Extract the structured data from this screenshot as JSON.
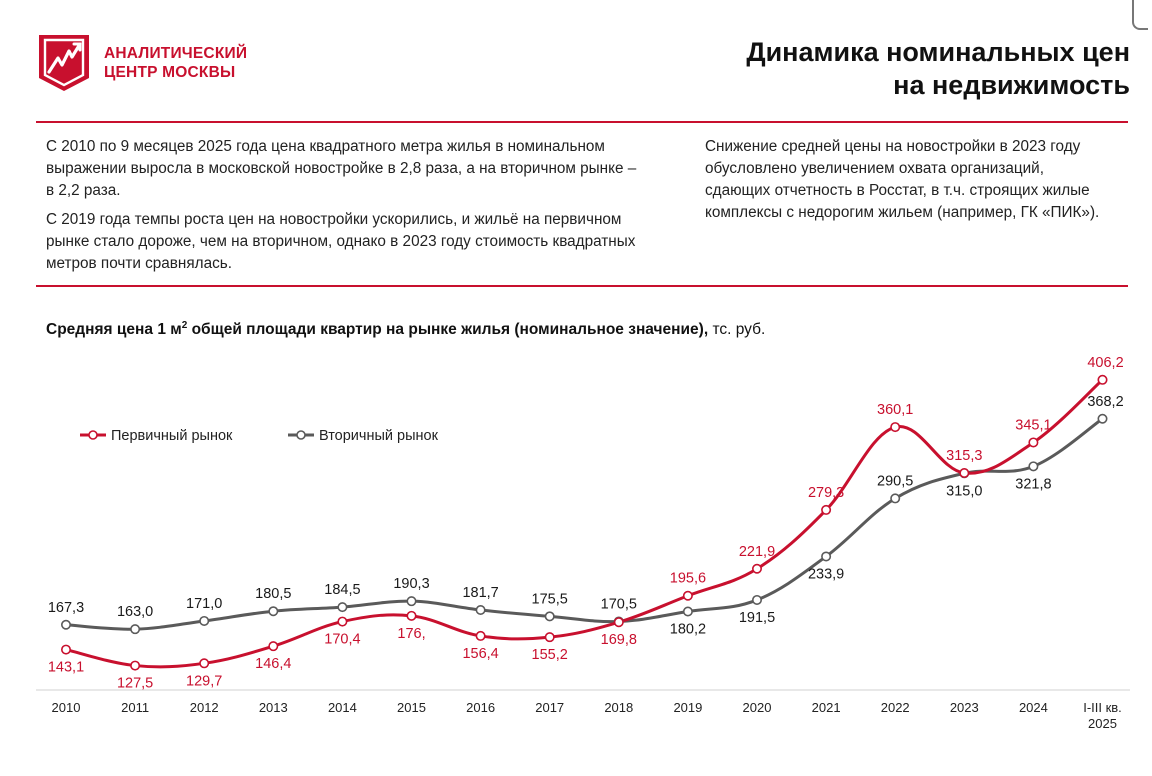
{
  "logo": {
    "line1": "АНАЛИТИЧЕСКИЙ",
    "line2": "ЦЕНТР МОСКВЫ"
  },
  "title": {
    "line1": "Динамика номинальных цен",
    "line2": "на недвижимость"
  },
  "text_left": {
    "p1": "С 2010 по 9 месяцев 2025 года цена квадратного метра жилья в номинальном выражении выросла в московской новостройке в 2,8 раза, а на вторичном рынке – в 2,2 раза.",
    "p2": "С 2019 года темпы роста цен на новостройки ускорились, и жильё на первичном рынке стало дороже, чем  на вторичном, однако в 2023 году стоимость квадратных метров почти сравнялась."
  },
  "text_right": "Снижение средней цены на новостройки в 2023 году обусловлено увеличением охвата организаций, сдающих отчетность в Росстат, в т.ч. строящих жилые комплексы с недорогим жильем (например, ГК «ПИК»).",
  "chart_heading": {
    "bold_pre": "Средняя цена 1 м",
    "sup": "2",
    "bold_post": " общей площади квартир на рынке жилья (номинальное значение),",
    "unit": " тс. руб."
  },
  "colors": {
    "accent": "#c8102e",
    "secondary": "#5a5a5a"
  },
  "chart_data": {
    "type": "line",
    "title": "Средняя цена 1 м² общей площади квартир на рынке жилья (номинальное значение), тыс. руб.",
    "categories": [
      "2010",
      "2011",
      "2012",
      "2013",
      "2014",
      "2015",
      "2016",
      "2017",
      "2018",
      "2019",
      "2020",
      "2021",
      "2022",
      "2023",
      "2024",
      "I-III кв. 2025"
    ],
    "series": [
      {
        "name": "Первичный рынок",
        "color": "#c8102e",
        "values": [
          143.1,
          127.5,
          129.7,
          146.4,
          170.4,
          176.0,
          156.4,
          155.2,
          169.8,
          195.6,
          221.9,
          279.3,
          360.1,
          315.3,
          345.1,
          406.2
        ],
        "labels": [
          "143,1",
          "127,5",
          "129,7",
          "146,4",
          "170,4",
          "176,",
          "156,4",
          "155,2",
          "169,8",
          "195,6",
          "221,9",
          "279,3",
          "360,1",
          "315,3",
          "345,1",
          "406,2"
        ],
        "label_pos": [
          "below",
          "below",
          "below",
          "below",
          "below",
          "below",
          "below",
          "below",
          "below",
          "above",
          "above",
          "above",
          "above",
          "above",
          "above",
          "above"
        ]
      },
      {
        "name": "Вторичный рынок",
        "color": "#5a5a5a",
        "values": [
          167.3,
          163.0,
          171.0,
          180.5,
          184.5,
          190.3,
          181.7,
          175.5,
          170.5,
          180.2,
          191.5,
          233.9,
          290.5,
          315.0,
          321.8,
          368.2
        ],
        "labels": [
          "167,3",
          "163,0",
          "171,0",
          "180,5",
          "184,5",
          "190,3",
          "181,7",
          "175,5",
          "170,5",
          "180,2",
          "191,5",
          "233,9",
          "290,5",
          "315,0",
          "321,8",
          "368,2"
        ],
        "label_pos": [
          "above",
          "above",
          "above",
          "above",
          "above",
          "above",
          "above",
          "above",
          "above",
          "below",
          "below",
          "below",
          "above",
          "below",
          "below",
          "above"
        ]
      }
    ],
    "legend": [
      "Первичный рынок",
      "Вторичный рынок"
    ],
    "legend_position": "top-left",
    "grid": false
  }
}
